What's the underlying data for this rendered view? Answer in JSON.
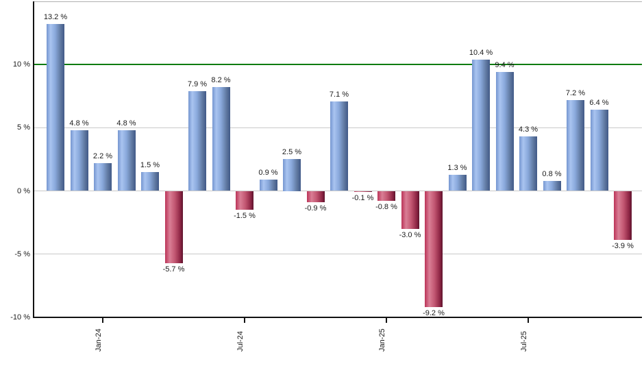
{
  "chart_data": {
    "type": "bar",
    "title": "",
    "ylabel": "",
    "xlabel": "",
    "unit": "%",
    "ylim": [
      -10,
      15
    ],
    "grid": true,
    "values": [
      13.2,
      4.8,
      2.2,
      4.8,
      1.5,
      -5.7,
      7.9,
      8.2,
      -1.5,
      0.9,
      2.5,
      -0.9,
      7.1,
      -0.1,
      -0.8,
      -3.0,
      -9.2,
      1.3,
      10.4,
      9.4,
      4.3,
      0.8,
      7.2,
      6.4,
      -3.9
    ],
    "bar_labels": [
      "13.2 %",
      "4.8 %",
      "2.2 %",
      "4.8 %",
      "1.5 %",
      "-5.7 %",
      "7.9 %",
      "8.2 %",
      "-1.5 %",
      "0.9 %",
      "2.5 %",
      "-0.9 %",
      "7.1 %",
      "-0.1 %",
      "-0.8 %",
      "-3.0 %",
      "-9.2 %",
      "1.3 %",
      "10.4 %",
      "9.4 %",
      "4.3 %",
      "0.8 %",
      "7.2 %",
      "6.4 %",
      "-3.9 %"
    ],
    "y_ticks": [
      10,
      5,
      0,
      -5,
      -10
    ],
    "y_tick_labels": [
      "10 %",
      "5 %",
      "0 %",
      "-5 %",
      "-10 %"
    ],
    "x_ticks": [
      {
        "label": "Jan-24",
        "bar_index": 2
      },
      {
        "label": "Jul-24",
        "bar_index": 8
      },
      {
        "label": "Jan-25",
        "bar_index": 14
      },
      {
        "label": "Jul-25",
        "bar_index": 20
      }
    ],
    "reference_line": {
      "value": 10,
      "color": "#0f7c10"
    },
    "colors": {
      "positive_bar": "#7d9cd2",
      "negative_bar": "#c04a68",
      "gridline": "#c9c9c9",
      "top_border": "#b0b0b0",
      "axis": "#111111",
      "label_text": "#1a1a1a",
      "background": "#ffffff"
    }
  }
}
